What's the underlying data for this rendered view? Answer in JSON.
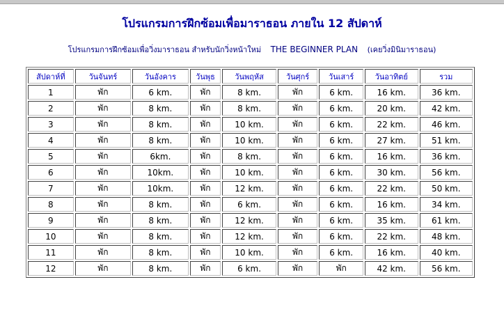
{
  "title": "โปรแกรมการฝึกซ้อมเพื่อมาราธอน ภายใน 12 สัปดาห์",
  "subtitle": {
    "thai": "โปรแกรมการฝึกซ้อมเพื่อวิ่งมาราธอน สำหรับนักวิ่งหน้าใหม่",
    "english": "THE BEGINNER PLAN",
    "note": "(เคยวิ่งมินิมาราธอน)"
  },
  "table": {
    "headers": [
      "สัปดาห์ที่",
      "วันจันทร์",
      "วันอังคาร",
      "วันพุธ",
      "วันพฤหัส",
      "วันศุกร์",
      "วันเสาร์",
      "วันอาทิตย์",
      "รวม"
    ],
    "rows": [
      [
        "1",
        "พัก",
        "6 km.",
        "พัก",
        "8 km.",
        "พัก",
        "6 km.",
        "16 km.",
        "36 km."
      ],
      [
        "2",
        "พัก",
        "8 km.",
        "พัก",
        "8 km.",
        "พัก",
        "6 km.",
        "20 km.",
        "42 km."
      ],
      [
        "3",
        "พัก",
        "8 km.",
        "พัก",
        "10 km.",
        "พัก",
        "6 km.",
        "22 km.",
        "46 km."
      ],
      [
        "4",
        "พัก",
        "8 km.",
        "พัก",
        "10 km.",
        "พัก",
        "6 km.",
        "27 km.",
        "51 km."
      ],
      [
        "5",
        "พัก",
        "6km.",
        "พัก",
        "8 km.",
        "พัก",
        "6 km.",
        "16 km.",
        "36 km."
      ],
      [
        "6",
        "พัก",
        "10km.",
        "พัก",
        "10 km.",
        "พัก",
        "6 km.",
        "30 km.",
        "56 km."
      ],
      [
        "7",
        "พัก",
        "10km.",
        "พัก",
        "12 km.",
        "พัก",
        "6 km.",
        "22 km.",
        "50 km."
      ],
      [
        "8",
        "พัก",
        "8 km.",
        "พัก",
        "6 km.",
        "พัก",
        "6 km.",
        "16 km.",
        "34 km."
      ],
      [
        "9",
        "พัก",
        "8 km.",
        "พัก",
        "12 km.",
        "พัก",
        "6 km.",
        "35 km.",
        "61 km."
      ],
      [
        "10",
        "พัก",
        "8 km.",
        "พัก",
        "12 km.",
        "พัก",
        "6 km.",
        "22 km.",
        "48 km."
      ],
      [
        "11",
        "พัก",
        "8 km.",
        "พัก",
        "10 km.",
        "พัก",
        "6 km.",
        "16 km.",
        "40 km."
      ],
      [
        "12",
        "พัก",
        "8 km.",
        "พัก",
        "6 km.",
        "พัก",
        "พัก",
        "42 km.",
        "56 km."
      ]
    ]
  }
}
